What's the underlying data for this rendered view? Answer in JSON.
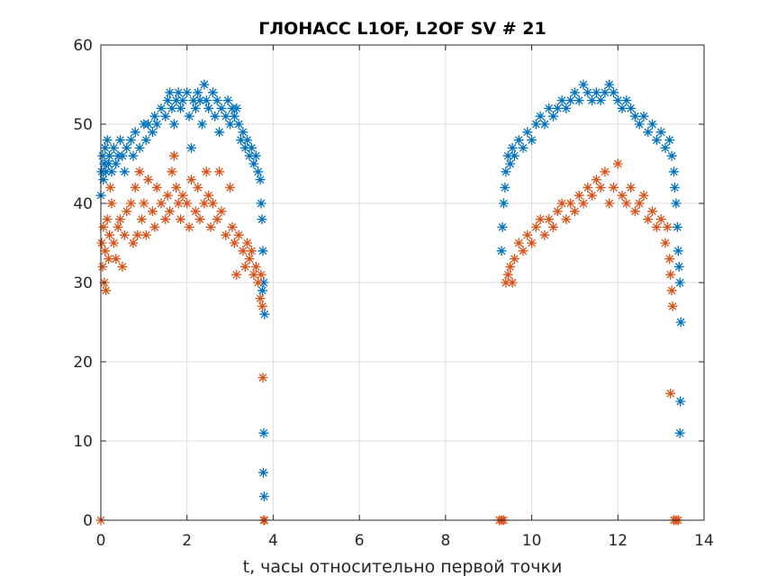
{
  "chart_data": {
    "type": "scatter",
    "title": "ГЛОНАСС L1OF, L2OF SV # 21",
    "xlabel": "t, часы относительно первой точки",
    "ylabel": "",
    "xlim": [
      0,
      14
    ],
    "ylim": [
      0,
      60
    ],
    "xticks": [
      0,
      2,
      4,
      6,
      8,
      10,
      12,
      14
    ],
    "yticks": [
      0,
      10,
      20,
      30,
      40,
      50,
      60
    ],
    "xtick_labels": [
      "0",
      "2",
      "4",
      "6",
      "8",
      "10",
      "12",
      "14"
    ],
    "ytick_labels": [
      "0",
      "10",
      "20",
      "30",
      "40",
      "50",
      "60"
    ],
    "grid": true,
    "marker": "asterisk",
    "series": [
      {
        "name": "L1OF",
        "color": "#0072bd",
        "points": [
          [
            0.0,
            41
          ],
          [
            0.02,
            44
          ],
          [
            0.04,
            46
          ],
          [
            0.06,
            43
          ],
          [
            0.08,
            45
          ],
          [
            0.1,
            47
          ],
          [
            0.12,
            44
          ],
          [
            0.15,
            48
          ],
          [
            0.18,
            45
          ],
          [
            0.2,
            46
          ],
          [
            0.25,
            44
          ],
          [
            0.3,
            47
          ],
          [
            0.35,
            45
          ],
          [
            0.4,
            46
          ],
          [
            0.45,
            48
          ],
          [
            0.5,
            46
          ],
          [
            0.55,
            44
          ],
          [
            0.6,
            47
          ],
          [
            0.7,
            48
          ],
          [
            0.75,
            46
          ],
          [
            0.8,
            49
          ],
          [
            0.9,
            47
          ],
          [
            1.0,
            50
          ],
          [
            1.05,
            48
          ],
          [
            1.1,
            50
          ],
          [
            1.2,
            49
          ],
          [
            1.25,
            51
          ],
          [
            1.3,
            50
          ],
          [
            1.4,
            52
          ],
          [
            1.5,
            51
          ],
          [
            1.55,
            53
          ],
          [
            1.6,
            54
          ],
          [
            1.65,
            52
          ],
          [
            1.7,
            50
          ],
          [
            1.75,
            53
          ],
          [
            1.8,
            54
          ],
          [
            1.85,
            52
          ],
          [
            1.9,
            53
          ],
          [
            2.0,
            54
          ],
          [
            2.05,
            51
          ],
          [
            2.1,
            47
          ],
          [
            2.15,
            53
          ],
          [
            2.2,
            52
          ],
          [
            2.25,
            54
          ],
          [
            2.3,
            53
          ],
          [
            2.35,
            50
          ],
          [
            2.4,
            55
          ],
          [
            2.45,
            53
          ],
          [
            2.5,
            52
          ],
          [
            2.6,
            54
          ],
          [
            2.65,
            51
          ],
          [
            2.7,
            53
          ],
          [
            2.75,
            49
          ],
          [
            2.8,
            52
          ],
          [
            2.9,
            51
          ],
          [
            2.95,
            53
          ],
          [
            3.0,
            50
          ],
          [
            3.05,
            52
          ],
          [
            3.1,
            51
          ],
          [
            3.15,
            52
          ],
          [
            3.2,
            50
          ],
          [
            3.25,
            48
          ],
          [
            3.3,
            49
          ],
          [
            3.35,
            47
          ],
          [
            3.4,
            48
          ],
          [
            3.45,
            46
          ],
          [
            3.5,
            47
          ],
          [
            3.55,
            45
          ],
          [
            3.6,
            46
          ],
          [
            3.65,
            44
          ],
          [
            3.7,
            43
          ],
          [
            3.72,
            40
          ],
          [
            3.74,
            38
          ],
          [
            3.76,
            34
          ],
          [
            3.78,
            30
          ],
          [
            3.8,
            26
          ],
          [
            3.78,
            11
          ],
          [
            3.77,
            6
          ],
          [
            3.79,
            3
          ],
          [
            3.75,
            29
          ],
          [
            9.3,
            34
          ],
          [
            9.32,
            37
          ],
          [
            9.35,
            40
          ],
          [
            9.38,
            42
          ],
          [
            9.4,
            44
          ],
          [
            9.45,
            46
          ],
          [
            9.5,
            45
          ],
          [
            9.55,
            47
          ],
          [
            9.6,
            46
          ],
          [
            9.7,
            48
          ],
          [
            9.8,
            47
          ],
          [
            9.9,
            49
          ],
          [
            10.0,
            48
          ],
          [
            10.1,
            50
          ],
          [
            10.2,
            51
          ],
          [
            10.3,
            50
          ],
          [
            10.4,
            52
          ],
          [
            10.5,
            51
          ],
          [
            10.6,
            52
          ],
          [
            10.7,
            53
          ],
          [
            10.8,
            52
          ],
          [
            10.9,
            53
          ],
          [
            11.0,
            54
          ],
          [
            11.1,
            53
          ],
          [
            11.2,
            55
          ],
          [
            11.3,
            54
          ],
          [
            11.4,
            53
          ],
          [
            11.5,
            54
          ],
          [
            11.6,
            53
          ],
          [
            11.7,
            54
          ],
          [
            11.8,
            55
          ],
          [
            11.9,
            54
          ],
          [
            12.0,
            53
          ],
          [
            12.1,
            52
          ],
          [
            12.2,
            53
          ],
          [
            12.3,
            52
          ],
          [
            12.4,
            51
          ],
          [
            12.5,
            50
          ],
          [
            12.6,
            51
          ],
          [
            12.7,
            49
          ],
          [
            12.8,
            50
          ],
          [
            12.9,
            48
          ],
          [
            13.0,
            49
          ],
          [
            13.1,
            47
          ],
          [
            13.2,
            48
          ],
          [
            13.25,
            46
          ],
          [
            13.3,
            44
          ],
          [
            13.32,
            42
          ],
          [
            13.35,
            40
          ],
          [
            13.38,
            37
          ],
          [
            13.4,
            34
          ],
          [
            13.42,
            32
          ],
          [
            13.44,
            30
          ],
          [
            13.46,
            25
          ],
          [
            13.45,
            15
          ],
          [
            13.44,
            11
          ]
        ]
      },
      {
        "name": "L2OF",
        "color": "#d95319",
        "points": [
          [
            0.0,
            0
          ],
          [
            0.02,
            35
          ],
          [
            0.04,
            32
          ],
          [
            0.06,
            37
          ],
          [
            0.08,
            30
          ],
          [
            0.1,
            34
          ],
          [
            0.12,
            29
          ],
          [
            0.15,
            38
          ],
          [
            0.18,
            33
          ],
          [
            0.2,
            36
          ],
          [
            0.22,
            42
          ],
          [
            0.25,
            40
          ],
          [
            0.3,
            35
          ],
          [
            0.35,
            33
          ],
          [
            0.4,
            37
          ],
          [
            0.45,
            38
          ],
          [
            0.5,
            32
          ],
          [
            0.55,
            36
          ],
          [
            0.6,
            39
          ],
          [
            0.7,
            40
          ],
          [
            0.75,
            35
          ],
          [
            0.8,
            42
          ],
          [
            0.85,
            36
          ],
          [
            0.9,
            44
          ],
          [
            0.95,
            38
          ],
          [
            1.0,
            40
          ],
          [
            1.05,
            36
          ],
          [
            1.1,
            43
          ],
          [
            1.2,
            39
          ],
          [
            1.25,
            37
          ],
          [
            1.3,
            42
          ],
          [
            1.4,
            40
          ],
          [
            1.5,
            38
          ],
          [
            1.55,
            41
          ],
          [
            1.6,
            39
          ],
          [
            1.65,
            44
          ],
          [
            1.7,
            46
          ],
          [
            1.75,
            42
          ],
          [
            1.8,
            40
          ],
          [
            1.85,
            38
          ],
          [
            1.9,
            41
          ],
          [
            2.0,
            40
          ],
          [
            2.05,
            37
          ],
          [
            2.1,
            43
          ],
          [
            2.2,
            39
          ],
          [
            2.25,
            42
          ],
          [
            2.3,
            38
          ],
          [
            2.4,
            40
          ],
          [
            2.45,
            44
          ],
          [
            2.5,
            41
          ],
          [
            2.55,
            37
          ],
          [
            2.6,
            40
          ],
          [
            2.7,
            38
          ],
          [
            2.75,
            44
          ],
          [
            2.8,
            39
          ],
          [
            2.9,
            36
          ],
          [
            3.0,
            42
          ],
          [
            3.05,
            37
          ],
          [
            3.1,
            35
          ],
          [
            3.15,
            31
          ],
          [
            3.2,
            36
          ],
          [
            3.3,
            34
          ],
          [
            3.35,
            32
          ],
          [
            3.4,
            35
          ],
          [
            3.45,
            33
          ],
          [
            3.5,
            34
          ],
          [
            3.55,
            31
          ],
          [
            3.6,
            32
          ],
          [
            3.65,
            30
          ],
          [
            3.7,
            28
          ],
          [
            3.72,
            31
          ],
          [
            3.75,
            27
          ],
          [
            3.76,
            18
          ],
          [
            3.78,
            0
          ],
          [
            3.8,
            0
          ],
          [
            9.25,
            0
          ],
          [
            9.3,
            0
          ],
          [
            9.35,
            0
          ],
          [
            9.4,
            30
          ],
          [
            9.45,
            31
          ],
          [
            9.5,
            32
          ],
          [
            9.55,
            30
          ],
          [
            9.6,
            33
          ],
          [
            9.7,
            35
          ],
          [
            9.8,
            34
          ],
          [
            9.9,
            36
          ],
          [
            10.0,
            35
          ],
          [
            10.1,
            37
          ],
          [
            10.2,
            38
          ],
          [
            10.3,
            36
          ],
          [
            10.4,
            38
          ],
          [
            10.5,
            37
          ],
          [
            10.6,
            39
          ],
          [
            10.7,
            40
          ],
          [
            10.8,
            38
          ],
          [
            10.9,
            40
          ],
          [
            11.0,
            39
          ],
          [
            11.1,
            41
          ],
          [
            11.2,
            40
          ],
          [
            11.3,
            42
          ],
          [
            11.4,
            41
          ],
          [
            11.5,
            43
          ],
          [
            11.6,
            42
          ],
          [
            11.7,
            44
          ],
          [
            11.8,
            40
          ],
          [
            11.9,
            42
          ],
          [
            12.0,
            45
          ],
          [
            12.1,
            41
          ],
          [
            12.2,
            40
          ],
          [
            12.3,
            42
          ],
          [
            12.4,
            39
          ],
          [
            12.5,
            40
          ],
          [
            12.6,
            41
          ],
          [
            12.7,
            38
          ],
          [
            12.8,
            39
          ],
          [
            12.9,
            37
          ],
          [
            13.0,
            38
          ],
          [
            13.1,
            35
          ],
          [
            13.15,
            37
          ],
          [
            13.2,
            33
          ],
          [
            13.22,
            31
          ],
          [
            13.25,
            29
          ],
          [
            13.27,
            27
          ],
          [
            13.22,
            16
          ],
          [
            13.3,
            0
          ],
          [
            13.35,
            0
          ],
          [
            13.4,
            0
          ]
        ]
      }
    ]
  }
}
